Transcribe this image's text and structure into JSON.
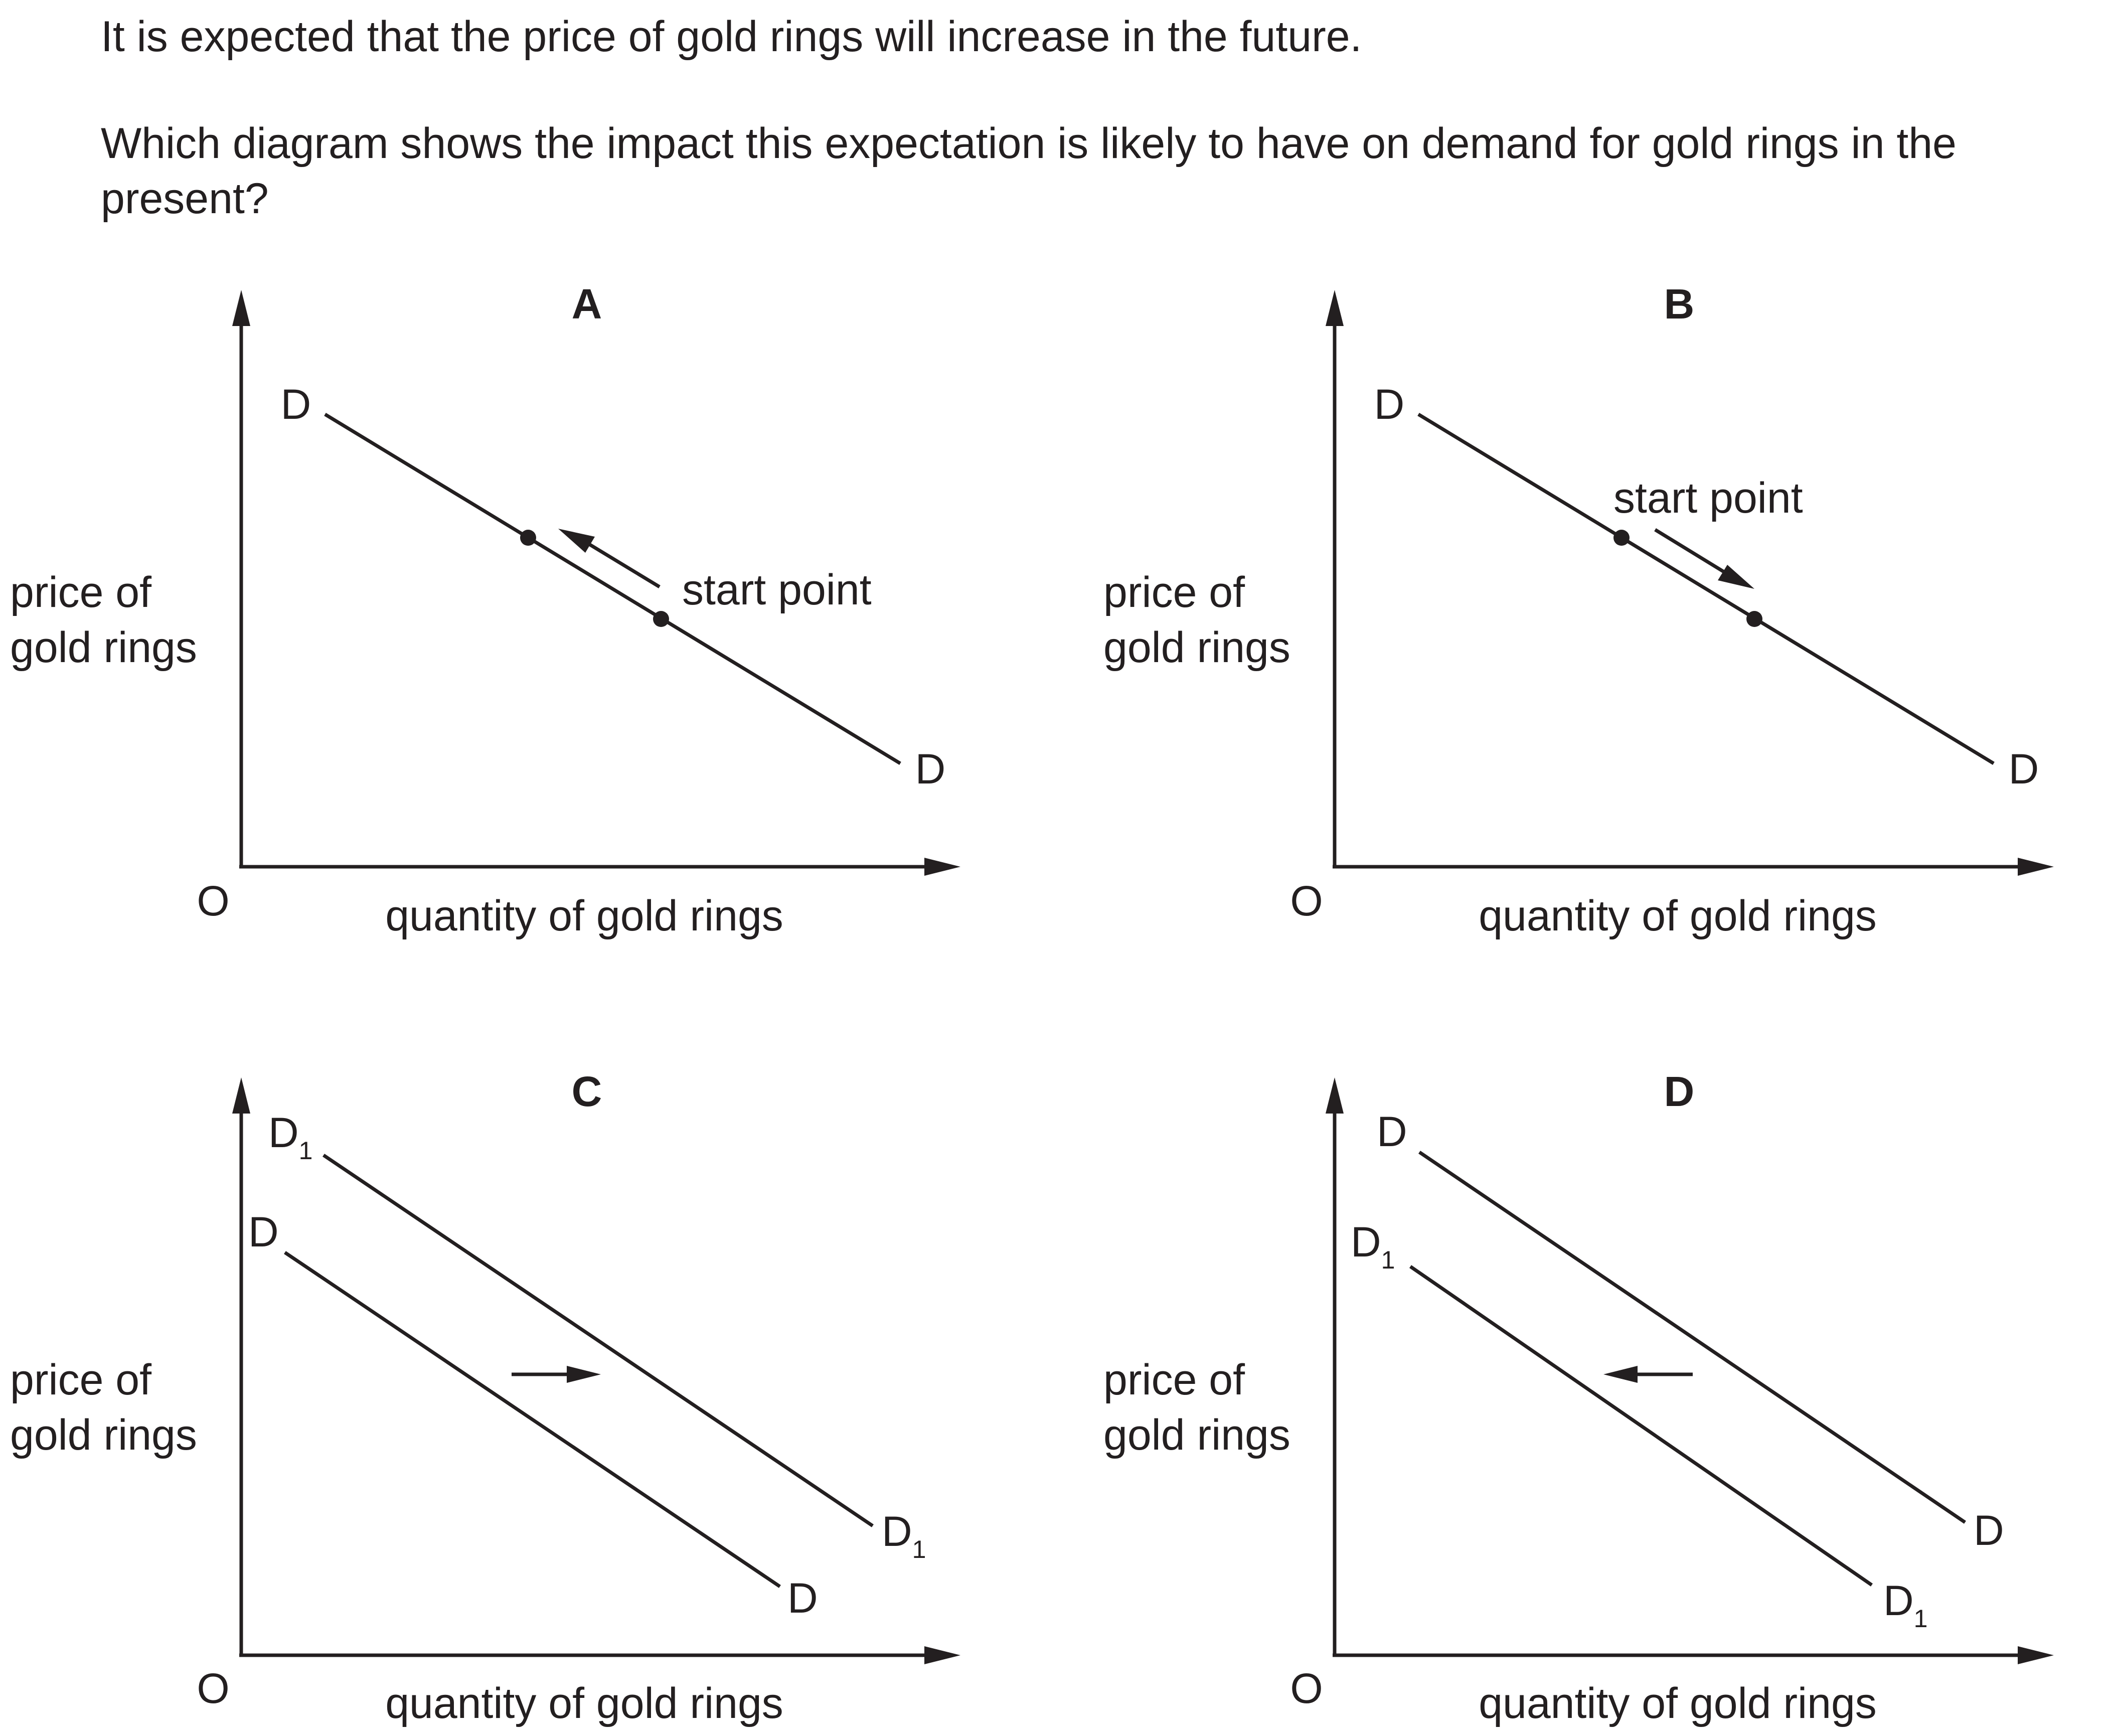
{
  "question": {
    "stem": "It is expected that the price of gold rings will increase in the future.",
    "prompt": "Which diagram shows the impact this expectation is likely to have on demand for gold rings in the present?"
  },
  "axes": {
    "y_label_line1": "price of",
    "y_label_line2": "gold rings",
    "x_label": "quantity of gold rings",
    "origin": "O"
  },
  "panels": [
    {
      "id": "A",
      "letter": "A",
      "type": "movement-along",
      "curve_label": "D",
      "annotation": "start point",
      "direction": "up-left"
    },
    {
      "id": "B",
      "letter": "B",
      "type": "movement-along",
      "curve_label": "D",
      "annotation": "start point",
      "direction": "down-right"
    },
    {
      "id": "C",
      "letter": "C",
      "type": "shift",
      "original_curve": "D",
      "new_curve": "D",
      "new_curve_subscript": "1",
      "direction": "right"
    },
    {
      "id": "D",
      "letter": "D",
      "type": "shift",
      "original_curve": "D",
      "new_curve": "D",
      "new_curve_subscript": "1",
      "direction": "left"
    }
  ]
}
